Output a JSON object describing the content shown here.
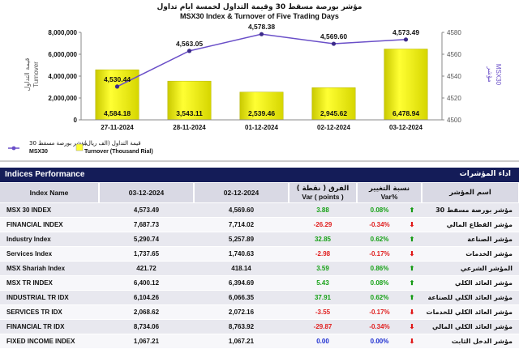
{
  "chart_data": {
    "type": "bar+line",
    "title_ar": "مؤشر بورصة مسقط 30 وقيمة التداول لخمسة ايام تداول",
    "title": "MSX30 Index & Turnover of Five Trading Days",
    "categories": [
      "27-11-2024",
      "28-11-2024",
      "01-12-2024",
      "02-12-2024",
      "03-12-2024"
    ],
    "bar_series": {
      "name_ar": "قيمة التداول (الف ريال)",
      "name": "Turnover (Thousand Rial)",
      "values": [
        4584.18,
        3543.11,
        2539.46,
        2945.62,
        6478.94
      ],
      "labels": [
        "4,584.18",
        "3,543.11",
        "2,539.46",
        "2,945.62",
        "6,478.94"
      ],
      "color": "#ffff33"
    },
    "line_series": {
      "name_ar": "مؤشر بورصة مسقط 30",
      "name": "MSX30",
      "values": [
        4530.44,
        4563.05,
        4578.38,
        4569.6,
        4573.49
      ],
      "labels": [
        "4,530.44",
        "4,563.05",
        "4,578.38",
        "4,569.60",
        "4,573.49"
      ],
      "color": "#6a4fc8"
    },
    "y_left": {
      "label_ar": "قيمة التداول",
      "label": "Turnover",
      "range": [
        0,
        8000000
      ],
      "ticks": [
        "0",
        "2,000,000",
        "4,000,000",
        "6,000,000",
        "8,000,000"
      ]
    },
    "y_right": {
      "label_ar": "مؤشر",
      "label": "MSX30",
      "range": [
        4500,
        4580
      ],
      "ticks": [
        "4500",
        "4520",
        "4540",
        "4560",
        "4580"
      ]
    },
    "grid": false,
    "legend": "bottom-left"
  },
  "section": {
    "title": "Indices Performance",
    "title_ar": "اداء المؤشرات"
  },
  "table": {
    "headers": {
      "name": "Index Name",
      "date1": "03-12-2024",
      "date2": "02-12-2024",
      "var_ar": "الفرق ( نقطة )",
      "var_points": "Var ( points )",
      "pct_ar": "نسبة التغيير",
      "pct": "Var%",
      "name_ar": "اسم المؤشر"
    },
    "rows": [
      {
        "name": "MSX 30 INDEX",
        "d1": "4,573.49",
        "d2": "4,569.60",
        "var": "3.88",
        "pct": "0.08%",
        "dir": "up",
        "name_ar": "مؤشر بورصة مسقط 30"
      },
      {
        "name": "FINANCIAL INDEX",
        "d1": "7,687.73",
        "d2": "7,714.02",
        "var": "-26.29",
        "pct": "-0.34%",
        "dir": "down",
        "name_ar": "مؤشر القطاع المالي"
      },
      {
        "name": "Industry Index",
        "d1": "5,290.74",
        "d2": "5,257.89",
        "var": "32.85",
        "pct": "0.62%",
        "dir": "up",
        "name_ar": "مؤشر الصناعة"
      },
      {
        "name": "Services Index",
        "d1": "1,737.65",
        "d2": "1,740.63",
        "var": "-2.98",
        "pct": "-0.17%",
        "dir": "down",
        "name_ar": "مؤشر الخدمات"
      },
      {
        "name": "MSX Shariah Index",
        "d1": "421.72",
        "d2": "418.14",
        "var": "3.59",
        "pct": "0.86%",
        "dir": "up",
        "name_ar": "المؤشر الشرعي"
      },
      {
        "name": "MSX TR INDEX",
        "d1": "6,400.12",
        "d2": "6,394.69",
        "var": "5.43",
        "pct": "0.08%",
        "dir": "up",
        "name_ar": "مؤشر العائد الكلي"
      },
      {
        "name": "INDUSTRIAL TR IDX",
        "d1": "6,104.26",
        "d2": "6,066.35",
        "var": "37.91",
        "pct": "0.62%",
        "dir": "up",
        "name_ar": "مؤشر العائد الكلي للصناعة"
      },
      {
        "name": "SERVICES TR IDX",
        "d1": "2,068.62",
        "d2": "2,072.16",
        "var": "-3.55",
        "pct": "-0.17%",
        "dir": "down",
        "name_ar": "مؤشر العائد الكلي للخدمات"
      },
      {
        "name": "FINANCIAL TR IDX",
        "d1": "8,734.06",
        "d2": "8,763.92",
        "var": "-29.87",
        "pct": "-0.34%",
        "dir": "down",
        "name_ar": "مؤشر العائد الكلي المالي"
      },
      {
        "name": "FIXED INCOME INDEX",
        "d1": "1,067.21",
        "d2": "1,067.21",
        "var": "0.00",
        "pct": "0.00%",
        "dir": "down",
        "name_ar": "مؤشر الدخل الثابت"
      }
    ]
  }
}
